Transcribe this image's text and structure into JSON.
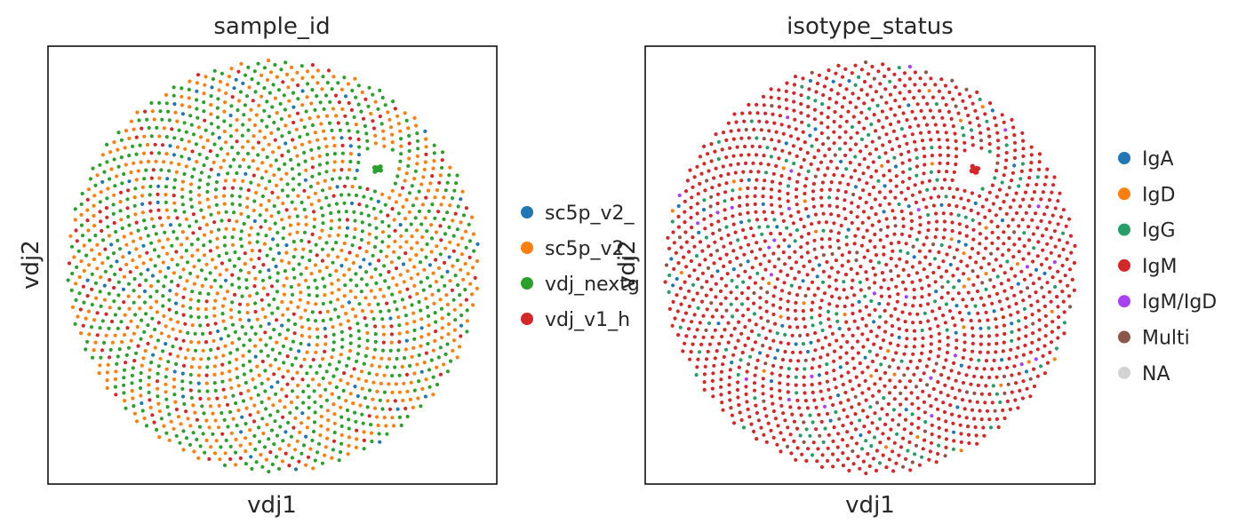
{
  "chart_data": [
    {
      "type": "scatter",
      "title": "sample_id",
      "xlabel": "vdj1",
      "ylabel": "vdj2",
      "ticks": "none",
      "grid": false,
      "legend_position": "right",
      "legend": [
        {
          "name": "sc5p_v2_",
          "color": "#1f77b4"
        },
        {
          "name": "sc5p_v2_",
          "color": "#ff7f0e"
        },
        {
          "name": "vdj_nextg",
          "color": "#2ca02c"
        },
        {
          "name": "vdj_v1_h",
          "color": "#d62728"
        }
      ],
      "color_weights": [
        0.05,
        0.4,
        0.43,
        0.12
      ]
    },
    {
      "type": "scatter",
      "title": "isotype_status",
      "xlabel": "vdj1",
      "ylabel": "vdj2",
      "ticks": "none",
      "grid": false,
      "legend_position": "right",
      "legend": [
        {
          "name": "IgA",
          "color": "#1f77b4"
        },
        {
          "name": "IgD",
          "color": "#ff7f0e"
        },
        {
          "name": "IgG",
          "color": "#279e68"
        },
        {
          "name": "IgM",
          "color": "#d62728"
        },
        {
          "name": "IgM/IgD",
          "color": "#aa40fc"
        },
        {
          "name": "Multi",
          "color": "#8c564b"
        },
        {
          "name": "NA",
          "color": "#d3d3d3"
        }
      ],
      "color_weights": [
        0.04,
        0.02,
        0.09,
        0.8,
        0.01,
        0.04,
        0.0
      ]
    }
  ]
}
